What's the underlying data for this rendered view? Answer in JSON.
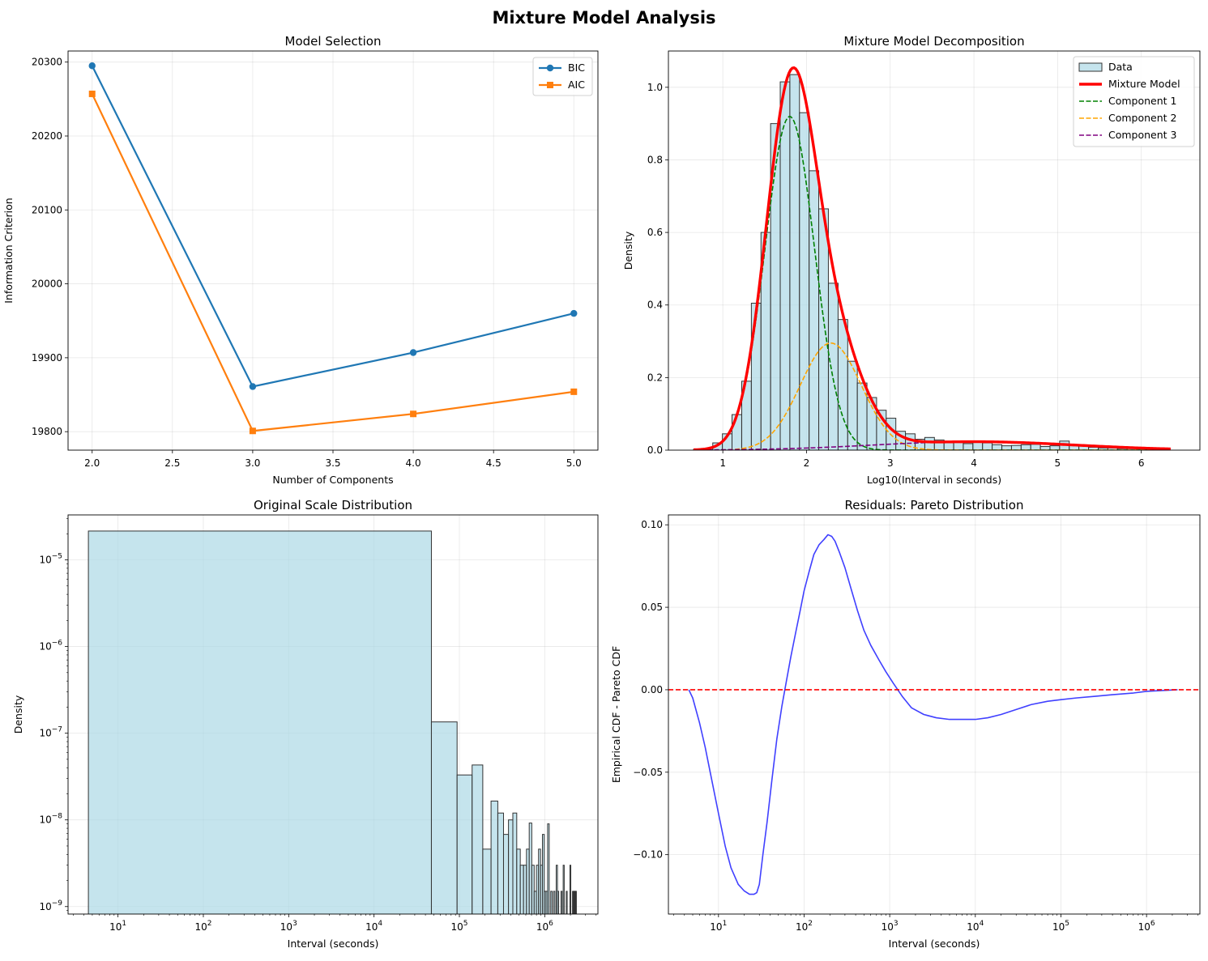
{
  "figure": {
    "title": "Mixture Model Analysis"
  },
  "chart_data": [
    {
      "type": "line",
      "title": "Model Selection",
      "xlabel": "Number of Components",
      "ylabel": "Information Criterion",
      "xlim": [
        1.85,
        5.15
      ],
      "ylim": [
        19775,
        20315
      ],
      "xticks": [
        2.0,
        2.5,
        3.0,
        3.5,
        4.0,
        4.5,
        5.0
      ],
      "xtick_labels": [
        "2.0",
        "2.5",
        "3.0",
        "3.5",
        "4.0",
        "4.5",
        "5.0"
      ],
      "yticks": [
        19800,
        19900,
        20000,
        20100,
        20200,
        20300
      ],
      "ytick_labels": [
        "19800",
        "19900",
        "20000",
        "20100",
        "20200",
        "20300"
      ],
      "grid": true,
      "legend": "upper right",
      "x": [
        2,
        3,
        4,
        5
      ],
      "series": [
        {
          "name": "BIC",
          "color": "#1f77b4",
          "marker": "circle",
          "values": [
            20295,
            19861,
            19907,
            19960
          ]
        },
        {
          "name": "AIC",
          "color": "#ff7f0e",
          "marker": "square",
          "values": [
            20257,
            19801,
            19824,
            19854
          ]
        }
      ]
    },
    {
      "type": "bar",
      "title": "Mixture Model Decomposition",
      "xlabel": "Log10(Interval in seconds)",
      "ylabel": "Density",
      "xlim": [
        0.35,
        6.7
      ],
      "ylim": [
        0,
        1.1
      ],
      "xticks": [
        1,
        2,
        3,
        4,
        5,
        6
      ],
      "xtick_labels": [
        "1",
        "2",
        "3",
        "4",
        "5",
        "6"
      ],
      "yticks": [
        0.0,
        0.2,
        0.4,
        0.6,
        0.8,
        1.0
      ],
      "ytick_labels": [
        "0.0",
        "0.2",
        "0.4",
        "0.6",
        "0.8",
        "1.0"
      ],
      "grid": true,
      "legend": "upper right",
      "histogram": {
        "name": "Data",
        "color": "#add8e6",
        "bin_width": 0.1151,
        "bin_left": [
          0.65,
          0.765,
          0.88,
          0.995,
          1.11,
          1.226,
          1.341,
          1.456,
          1.571,
          1.686,
          1.801,
          1.916,
          2.031,
          2.146,
          2.262,
          2.377,
          2.492,
          2.607,
          2.722,
          2.837,
          2.952,
          3.067,
          3.182,
          3.298,
          3.413,
          3.528,
          3.643,
          3.758,
          3.873,
          3.988,
          4.103,
          4.218,
          4.334,
          4.449,
          4.564,
          4.679,
          4.794,
          4.909,
          5.024,
          5.139,
          5.254,
          5.37,
          5.485,
          5.6,
          5.715,
          5.83,
          5.945,
          6.06,
          6.175
        ],
        "values": [
          0.002,
          0.005,
          0.02,
          0.045,
          0.098,
          0.19,
          0.405,
          0.6,
          0.9,
          1.015,
          1.035,
          0.93,
          0.77,
          0.665,
          0.46,
          0.36,
          0.245,
          0.185,
          0.145,
          0.11,
          0.088,
          0.052,
          0.045,
          0.03,
          0.035,
          0.028,
          0.022,
          0.024,
          0.018,
          0.022,
          0.02,
          0.015,
          0.012,
          0.013,
          0.015,
          0.016,
          0.01,
          0.012,
          0.025,
          0.014,
          0.012,
          0.008,
          0.006,
          0.006,
          0.004,
          0.004,
          0.003,
          0.003,
          0.002
        ]
      },
      "components": [
        {
          "name": "Component 1",
          "color": "#008000",
          "weight": 0.68,
          "mean": 1.8,
          "sd": 0.295
        },
        {
          "name": "Component 2",
          "color": "#ffa500",
          "weight": 0.27,
          "mean": 2.29,
          "sd": 0.365
        },
        {
          "name": "Component 3",
          "color": "#800080",
          "weight": 0.07,
          "mean": 4.0,
          "sd": 1.2
        }
      ],
      "mixture": {
        "name": "Mixture Model",
        "color": "#ff0000"
      },
      "curve_range": [
        0.65,
        6.35
      ]
    },
    {
      "type": "bar",
      "title": "Original Scale Distribution",
      "xlabel": "Interval (seconds)",
      "ylabel": "Density",
      "xscale": "log",
      "yscale": "log",
      "xlim": [
        2.6,
        4200000
      ],
      "ylim": [
        8.2e-10,
        3.3e-05
      ],
      "xticks": [
        10,
        100,
        1000,
        10000,
        100000,
        1000000
      ],
      "xtick_labels": [
        "10^1",
        "10^2",
        "10^3",
        "10^4",
        "10^5",
        "10^6"
      ],
      "yticks": [
        1e-09,
        1e-08,
        1e-07,
        1e-06,
        1e-05
      ],
      "ytick_labels": [
        "10^−9",
        "10^−8",
        "10^−7",
        "10^−6",
        "10^−5"
      ],
      "grid": true,
      "color": "#add8e6",
      "bin_edges": [
        4.5,
        47000,
        94000,
        141000,
        188000,
        235000,
        282000,
        329000,
        376000,
        423000,
        470000,
        517000,
        564000,
        611000,
        658000,
        705000,
        752000,
        799000,
        846000,
        893000,
        940000,
        987000,
        1034000,
        1081000,
        1128000,
        1175000,
        1222000,
        1269000,
        1316000,
        1363000,
        1410000,
        1457000,
        1504000,
        1551000,
        1598000,
        1645000,
        1692000,
        1739000,
        1786000,
        1833000,
        1880000,
        1927000,
        1974000,
        2021000,
        2068000,
        2115000,
        2162000,
        2209000,
        2256000,
        2303000,
        2350000
      ],
      "values": [
        2.15e-05,
        1.35e-07,
        3.3e-08,
        4.3e-08,
        4.6e-09,
        1.65e-08,
        1.2e-08,
        6.8e-09,
        1e-08,
        1.2e-08,
        4.6e-09,
        3e-09,
        3e-09,
        4.6e-09,
        9.2e-09,
        3e-09,
        1.5e-09,
        3e-09,
        4.6e-09,
        3e-09,
        6.8e-09,
        1.5e-09,
        1.5e-09,
        9e-09,
        0,
        1.5e-09,
        0,
        1.5e-09,
        0,
        3e-09,
        1.5e-09,
        0,
        0,
        1.5e-09,
        0,
        3e-09,
        0,
        0,
        1.5e-09,
        0,
        0,
        0,
        3e-09,
        0,
        0,
        1.5e-09,
        1.5e-09,
        1.5e-09,
        1.5e-09,
        1.5e-09
      ]
    },
    {
      "type": "line",
      "title": "Residuals: Pareto Distribution",
      "xlabel": "Interval (seconds)",
      "ylabel": "Empirical CDF - Pareto CDF",
      "xscale": "log",
      "xlim": [
        2.6,
        4200000
      ],
      "ylim": [
        -0.136,
        0.106
      ],
      "xticks": [
        10,
        100,
        1000,
        10000,
        100000,
        1000000
      ],
      "xtick_labels": [
        "10^1",
        "10^2",
        "10^3",
        "10^4",
        "10^5",
        "10^6"
      ],
      "yticks": [
        -0.1,
        -0.05,
        0.0,
        0.05,
        0.1
      ],
      "ytick_labels": [
        "−0.10",
        "−0.05",
        "0.00",
        "0.05",
        "0.10"
      ],
      "grid": true,
      "reference_line": {
        "y": 0,
        "color": "#ff0000",
        "style": "dashed"
      },
      "series": [
        {
          "color": "#4040ff",
          "x": [
            4.5,
            5,
            6,
            7,
            8,
            10,
            12,
            14,
            17,
            20,
            23,
            26,
            28,
            30,
            33,
            37,
            42,
            48,
            55,
            62,
            70,
            80,
            90,
            100,
            115,
            130,
            150,
            170,
            190,
            210,
            230,
            260,
            300,
            350,
            420,
            500,
            600,
            750,
            900,
            1100,
            1400,
            1800,
            2500,
            3500,
            5000,
            7000,
            10000,
            14000,
            20000,
            30000,
            45000,
            70000,
            100000,
            150000,
            250000,
            400000,
            700000,
            1000000,
            1500000,
            2300000
          ],
          "values": [
            0.0,
            -0.005,
            -0.02,
            -0.035,
            -0.05,
            -0.075,
            -0.095,
            -0.108,
            -0.118,
            -0.122,
            -0.124,
            -0.124,
            -0.123,
            -0.118,
            -0.1,
            -0.08,
            -0.055,
            -0.03,
            -0.01,
            0.005,
            0.02,
            0.035,
            0.048,
            0.06,
            0.072,
            0.082,
            0.088,
            0.091,
            0.094,
            0.093,
            0.09,
            0.083,
            0.074,
            0.062,
            0.048,
            0.036,
            0.027,
            0.018,
            0.011,
            0.004,
            -0.004,
            -0.011,
            -0.015,
            -0.017,
            -0.018,
            -0.018,
            -0.018,
            -0.017,
            -0.015,
            -0.012,
            -0.009,
            -0.007,
            -0.006,
            -0.005,
            -0.004,
            -0.003,
            -0.002,
            -0.001,
            -0.0005,
            0.0
          ]
        }
      ]
    }
  ]
}
